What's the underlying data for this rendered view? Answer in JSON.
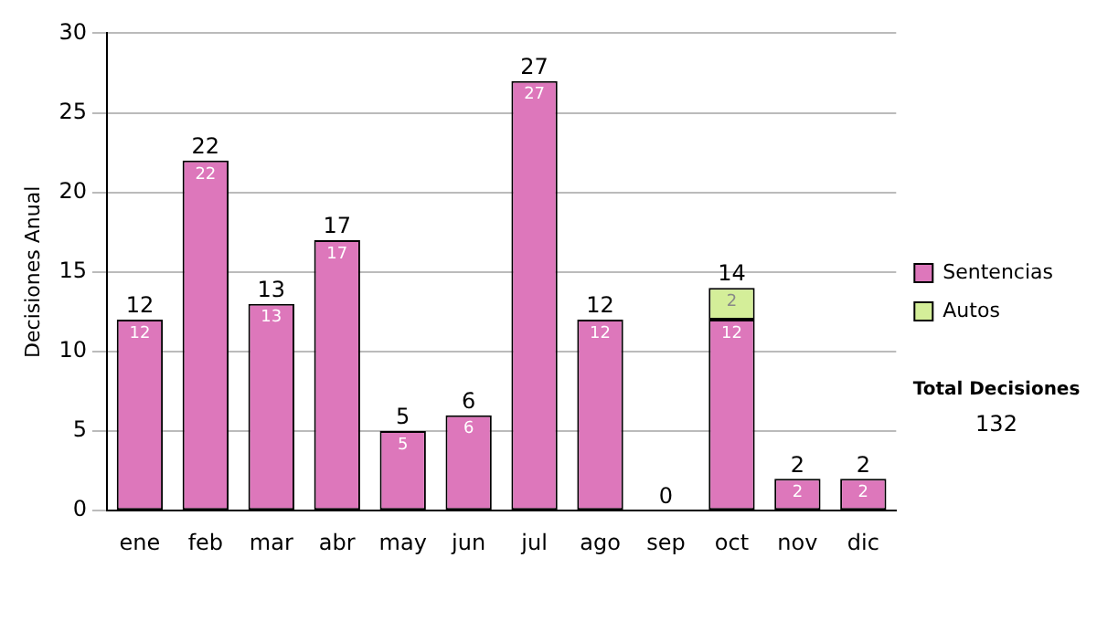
{
  "chart_data": {
    "type": "bar",
    "ylabel": "Decisiones Anual",
    "categories": [
      "ene",
      "feb",
      "mar",
      "abr",
      "may",
      "jun",
      "jul",
      "ago",
      "sep",
      "oct",
      "nov",
      "dic"
    ],
    "series": [
      {
        "name": "Sentencias",
        "color": "#dd77bb",
        "values": [
          12,
          22,
          13,
          17,
          5,
          6,
          27,
          12,
          0,
          12,
          2,
          2
        ],
        "value_labels": [
          "12",
          "22",
          "13",
          "17",
          "5",
          "6",
          "27",
          "12",
          null,
          "12",
          "2",
          "2"
        ]
      },
      {
        "name": "Autos",
        "color": "#d4ee99",
        "values": [
          null,
          null,
          null,
          null,
          null,
          null,
          null,
          null,
          null,
          2,
          null,
          null
        ],
        "value_labels": [
          null,
          null,
          null,
          null,
          null,
          null,
          null,
          null,
          null,
          "2",
          null,
          null
        ]
      }
    ],
    "stacked": true,
    "totals": [
      "12",
      "22",
      "13",
      "17",
      "5",
      "6",
      "27",
      "12",
      "0",
      "14",
      "2",
      "2"
    ],
    "ylim": [
      0,
      30
    ],
    "yticks": [
      0,
      5,
      10,
      15,
      20,
      25,
      30
    ],
    "grid": "y",
    "legend": "right",
    "annotations": [
      "Total Decisiones",
      "132"
    ]
  }
}
